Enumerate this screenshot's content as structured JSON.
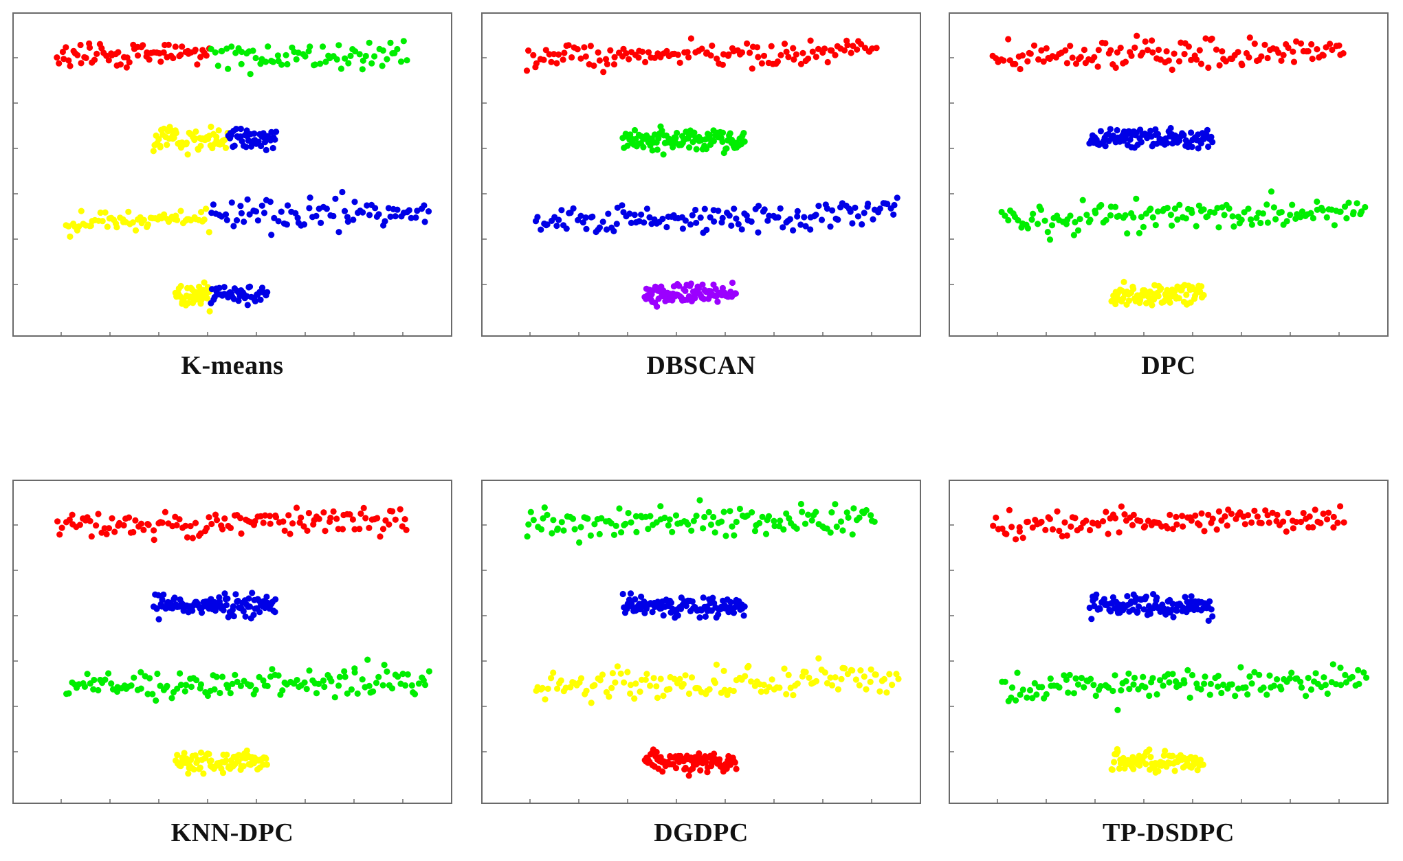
{
  "figure": {
    "colors": {
      "red": "#ff0000",
      "green": "#00ee00",
      "blue": "#0000e6",
      "yellow": "#ffff00",
      "purple": "#9b00ff",
      "axis": "#6a6a6a"
    },
    "panels": [
      {
        "title": "K-means"
      },
      {
        "title": "DBSCAN"
      },
      {
        "title": "DPC"
      },
      {
        "title": "KNN-DPC"
      },
      {
        "title": "DGDPC"
      },
      {
        "title": "TP-DSDPC"
      }
    ]
  },
  "chart_data": [
    {
      "type": "scatter",
      "title": "K-means",
      "xlim": [
        0,
        100
      ],
      "ylim": [
        0,
        100
      ],
      "grid": false,
      "series": [
        {
          "color": "red",
          "x_range": [
            10,
            45
          ],
          "y_center": 87,
          "y_spread": 3,
          "count": 70
        },
        {
          "color": "green",
          "x_range": [
            45,
            90
          ],
          "y_center": 87,
          "y_spread": 4,
          "count": 70
        },
        {
          "color": "yellow",
          "x_range": [
            32,
            49
          ],
          "y_center": 61,
          "y_spread": 3,
          "count": 65
        },
        {
          "color": "blue",
          "x_range": [
            49,
            60
          ],
          "y_center": 61,
          "y_spread": 3,
          "count": 45
        },
        {
          "color": "yellow",
          "x_range": [
            12,
            45
          ],
          "y_center": 36,
          "y_spread": 3,
          "count": 65
        },
        {
          "color": "blue",
          "x_range": [
            45,
            95
          ],
          "y_center": 38,
          "y_spread": 4,
          "count": 80
        },
        {
          "color": "yellow",
          "x_range": [
            37,
            45
          ],
          "y_center": 13,
          "y_spread": 3,
          "count": 45
        },
        {
          "color": "blue",
          "x_range": [
            45,
            58
          ],
          "y_center": 13,
          "y_spread": 3,
          "count": 45
        }
      ]
    },
    {
      "type": "scatter",
      "title": "DBSCAN",
      "xlim": [
        0,
        100
      ],
      "ylim": [
        0,
        100
      ],
      "grid": false,
      "series": [
        {
          "color": "red",
          "x_range": [
            10,
            90
          ],
          "y_center": 87,
          "y_spread": 4,
          "count": 130
        },
        {
          "color": "green",
          "x_range": [
            32,
            60
          ],
          "y_center": 61,
          "y_spread": 3,
          "count": 110
        },
        {
          "color": "blue",
          "x_range": [
            12,
            95
          ],
          "y_center": 37,
          "y_spread": 4,
          "count": 140
        },
        {
          "color": "purple",
          "x_range": [
            37,
            58
          ],
          "y_center": 13,
          "y_spread": 3,
          "count": 90
        }
      ]
    },
    {
      "type": "scatter",
      "title": "DPC",
      "xlim": [
        0,
        100
      ],
      "ylim": [
        0,
        100
      ],
      "grid": false,
      "series": [
        {
          "color": "red",
          "x_range": [
            10,
            90
          ],
          "y_center": 87,
          "y_spread": 4,
          "count": 130
        },
        {
          "color": "blue",
          "x_range": [
            32,
            60
          ],
          "y_center": 61,
          "y_spread": 3,
          "count": 110
        },
        {
          "color": "green",
          "x_range": [
            12,
            95
          ],
          "y_center": 37,
          "y_spread": 4,
          "count": 140
        },
        {
          "color": "yellow",
          "x_range": [
            37,
            58
          ],
          "y_center": 13,
          "y_spread": 3,
          "count": 90
        }
      ]
    },
    {
      "type": "scatter",
      "title": "KNN-DPC",
      "xlim": [
        0,
        100
      ],
      "ylim": [
        0,
        100
      ],
      "grid": false,
      "series": [
        {
          "color": "red",
          "x_range": [
            10,
            90
          ],
          "y_center": 87,
          "y_spread": 4,
          "count": 130
        },
        {
          "color": "blue",
          "x_range": [
            32,
            60
          ],
          "y_center": 61,
          "y_spread": 3,
          "count": 110
        },
        {
          "color": "green",
          "x_range": [
            12,
            95
          ],
          "y_center": 37,
          "y_spread": 4,
          "count": 140
        },
        {
          "color": "yellow",
          "x_range": [
            37,
            58
          ],
          "y_center": 13,
          "y_spread": 3,
          "count": 90
        }
      ]
    },
    {
      "type": "scatter",
      "title": "DGDPC",
      "xlim": [
        0,
        100
      ],
      "ylim": [
        0,
        100
      ],
      "grid": false,
      "series": [
        {
          "color": "green",
          "x_range": [
            10,
            90
          ],
          "y_center": 87,
          "y_spread": 4,
          "count": 130
        },
        {
          "color": "blue",
          "x_range": [
            32,
            60
          ],
          "y_center": 61,
          "y_spread": 3,
          "count": 110
        },
        {
          "color": "yellow",
          "x_range": [
            12,
            95
          ],
          "y_center": 37,
          "y_spread": 4,
          "count": 140
        },
        {
          "color": "red",
          "x_range": [
            37,
            58
          ],
          "y_center": 13,
          "y_spread": 3,
          "count": 90
        }
      ]
    },
    {
      "type": "scatter",
      "title": "TP-DSDPC",
      "xlim": [
        0,
        100
      ],
      "ylim": [
        0,
        100
      ],
      "grid": false,
      "series": [
        {
          "color": "red",
          "x_range": [
            10,
            90
          ],
          "y_center": 87,
          "y_spread": 4,
          "count": 130
        },
        {
          "color": "blue",
          "x_range": [
            32,
            60
          ],
          "y_center": 61,
          "y_spread": 3,
          "count": 110
        },
        {
          "color": "green",
          "x_range": [
            12,
            95
          ],
          "y_center": 37,
          "y_spread": 4,
          "count": 140
        },
        {
          "color": "yellow",
          "x_range": [
            37,
            58
          ],
          "y_center": 13,
          "y_spread": 3,
          "count": 90
        }
      ]
    }
  ]
}
